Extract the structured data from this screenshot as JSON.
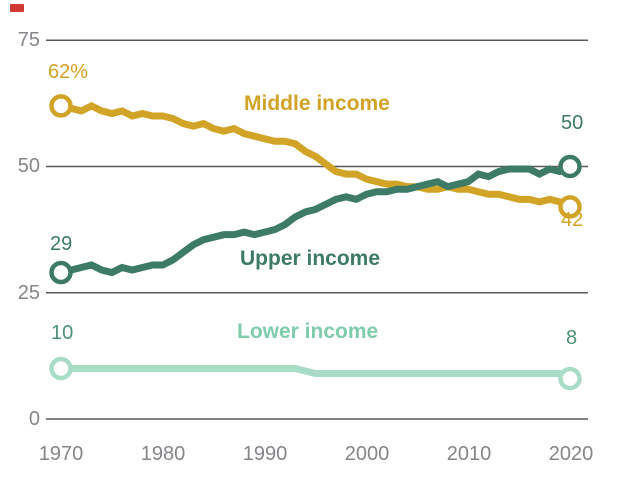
{
  "decoration": {
    "red_mark_color": "#d23a34"
  },
  "chart_data": {
    "type": "line",
    "title": "",
    "xlabel": "",
    "ylabel": "",
    "x": [
      1970,
      1971,
      1972,
      1973,
      1974,
      1975,
      1976,
      1977,
      1978,
      1979,
      1980,
      1981,
      1982,
      1983,
      1984,
      1985,
      1986,
      1987,
      1988,
      1989,
      1990,
      1991,
      1992,
      1993,
      1994,
      1995,
      1996,
      1997,
      1998,
      1999,
      2000,
      2001,
      2002,
      2003,
      2004,
      2005,
      2006,
      2007,
      2008,
      2009,
      2010,
      2011,
      2012,
      2013,
      2014,
      2015,
      2016,
      2017,
      2018,
      2019,
      2020
    ],
    "xticks": [
      1970,
      1980,
      1990,
      2000,
      2010,
      2020
    ],
    "yticks": [
      75,
      50,
      25,
      0
    ],
    "ylim": [
      0,
      80
    ],
    "grid": "horizontal",
    "legend_position": "inline-labels",
    "style": {
      "grid_color": "#58595b",
      "axis_label_color": "#848689",
      "background": "#ffffff",
      "line_width": 7,
      "marker": "open-circle"
    },
    "series": [
      {
        "name": "Middle income",
        "color": "#d1a326",
        "number_color": "#d1a326",
        "start_label": "62%",
        "end_label": "42",
        "values": [
          62,
          61.5,
          61,
          62,
          61,
          60.5,
          61,
          60,
          60.5,
          60,
          60,
          59.5,
          58.5,
          58,
          58.5,
          57.5,
          57,
          57.5,
          56.5,
          56,
          55.5,
          55,
          55,
          54.5,
          53,
          52,
          50.5,
          49,
          48.5,
          48.5,
          47.5,
          47,
          46.5,
          46.5,
          46,
          46,
          45.5,
          45.5,
          46,
          45.5,
          45.5,
          45,
          44.5,
          44.5,
          44,
          43.5,
          43.5,
          43,
          43.5,
          43,
          42
        ]
      },
      {
        "name": "Upper income",
        "color": "#3e7b66",
        "number_color": "#3e7b66",
        "start_label": "29",
        "end_label": "50",
        "values": [
          29,
          29.5,
          30,
          30.5,
          29.5,
          29,
          30,
          29.5,
          30,
          30.5,
          30.5,
          31.5,
          33,
          34.5,
          35.5,
          36,
          36.5,
          36.5,
          37,
          36.5,
          37,
          37.5,
          38.5,
          40,
          41,
          41.5,
          42.5,
          43.5,
          44,
          43.5,
          44.5,
          45,
          45,
          45.5,
          45.5,
          46,
          46.5,
          47,
          46,
          46.5,
          47,
          48.5,
          48,
          49,
          49.5,
          49.5,
          49.5,
          48.5,
          49.5,
          49,
          50
        ]
      },
      {
        "name": "Lower income",
        "color": "#a9dcc6",
        "label_color": "#7fccab",
        "number_color": "#4e9277",
        "start_label": "10",
        "end_label": "8",
        "values": [
          10,
          10,
          10,
          10,
          10,
          10,
          10,
          10,
          10,
          10,
          10,
          10,
          10,
          10,
          10,
          10,
          10,
          10,
          10,
          10,
          10,
          10,
          10,
          10,
          9.5,
          9,
          9,
          9,
          9,
          9,
          9,
          9,
          9,
          9,
          9,
          9,
          9,
          9,
          9,
          9,
          9,
          9,
          9,
          9,
          9,
          9,
          9,
          9,
          9,
          9,
          8
        ]
      }
    ]
  }
}
